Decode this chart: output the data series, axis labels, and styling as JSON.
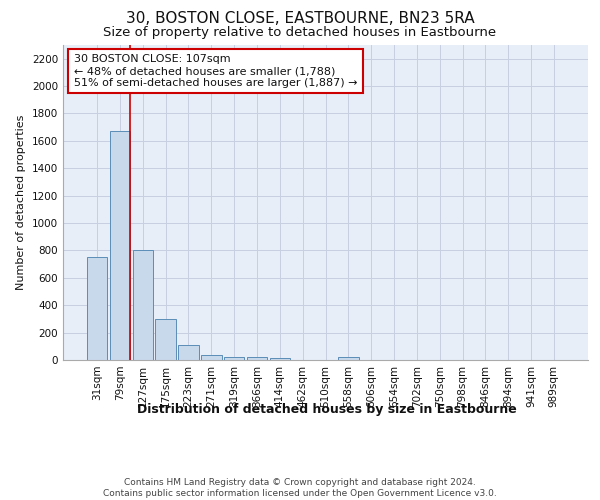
{
  "title": "30, BOSTON CLOSE, EASTBOURNE, BN23 5RA",
  "subtitle": "Size of property relative to detached houses in Eastbourne",
  "xlabel": "Distribution of detached houses by size in Eastbourne",
  "ylabel": "Number of detached properties",
  "categories": [
    "31sqm",
    "79sqm",
    "127sqm",
    "175sqm",
    "223sqm",
    "271sqm",
    "319sqm",
    "366sqm",
    "414sqm",
    "462sqm",
    "510sqm",
    "558sqm",
    "606sqm",
    "654sqm",
    "702sqm",
    "750sqm",
    "798sqm",
    "846sqm",
    "894sqm",
    "941sqm",
    "989sqm"
  ],
  "values": [
    750,
    1670,
    800,
    300,
    110,
    35,
    25,
    20,
    15,
    0,
    0,
    20,
    0,
    0,
    0,
    0,
    0,
    0,
    0,
    0,
    0
  ],
  "bar_color": "#c9d9ec",
  "bar_edge_color": "#5b8db8",
  "grid_color": "#c8cfe0",
  "background_color": "#e8eef8",
  "annotation_box_text": "30 BOSTON CLOSE: 107sqm\n← 48% of detached houses are smaller (1,788)\n51% of semi-detached houses are larger (1,887) →",
  "annotation_box_color": "#ffffff",
  "annotation_box_edge_color": "#cc0000",
  "property_line_color": "#cc0000",
  "ylim": [
    0,
    2300
  ],
  "yticks": [
    0,
    200,
    400,
    600,
    800,
    1000,
    1200,
    1400,
    1600,
    1800,
    2000,
    2200
  ],
  "footer_text": "Contains HM Land Registry data © Crown copyright and database right 2024.\nContains public sector information licensed under the Open Government Licence v3.0.",
  "title_fontsize": 11,
  "subtitle_fontsize": 9.5,
  "xlabel_fontsize": 9,
  "ylabel_fontsize": 8,
  "tick_fontsize": 7.5,
  "footer_fontsize": 6.5,
  "ann_fontsize": 8
}
